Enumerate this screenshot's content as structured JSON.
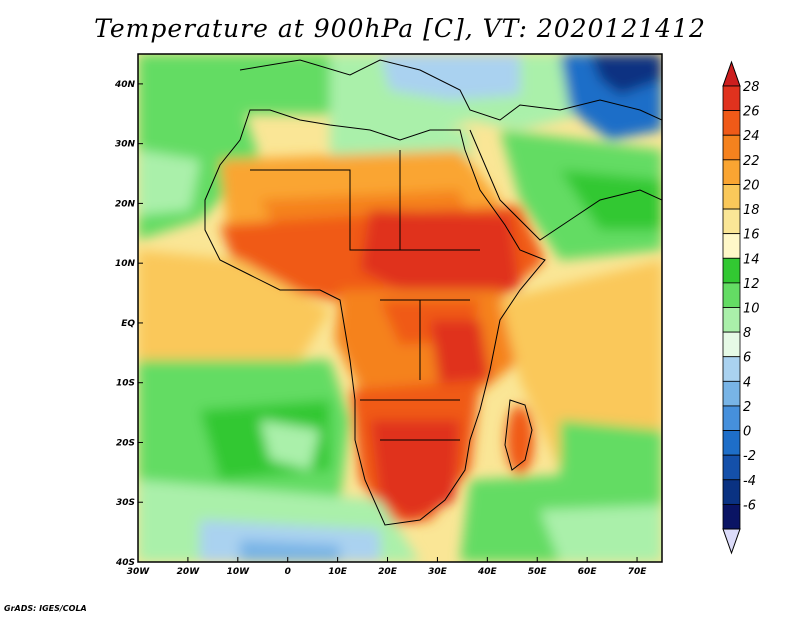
{
  "title": "Temperature at 900hPa [C], VT: 2020121412",
  "credit": "GrADS: IGES/COLA",
  "map": {
    "lon_range": [
      -30,
      75
    ],
    "lat_range": [
      -40,
      45
    ],
    "lon_ticks": [
      {
        "lon": -30,
        "label": "30W"
      },
      {
        "lon": -20,
        "label": "20W"
      },
      {
        "lon": -10,
        "label": "10W"
      },
      {
        "lon": 0,
        "label": "0"
      },
      {
        "lon": 10,
        "label": "10E"
      },
      {
        "lon": 20,
        "label": "20E"
      },
      {
        "lon": 30,
        "label": "30E"
      },
      {
        "lon": 40,
        "label": "40E"
      },
      {
        "lon": 50,
        "label": "50E"
      },
      {
        "lon": 60,
        "label": "60E"
      },
      {
        "lon": 70,
        "label": "70E"
      }
    ],
    "lat_ticks": [
      {
        "lat": 40,
        "label": "40N"
      },
      {
        "lat": 30,
        "label": "30N"
      },
      {
        "lat": 20,
        "label": "20N"
      },
      {
        "lat": 10,
        "label": "10N"
      },
      {
        "lat": 0,
        "label": "EQ"
      },
      {
        "lat": -10,
        "label": "10S"
      },
      {
        "lat": -20,
        "label": "20S"
      },
      {
        "lat": -30,
        "label": "30S"
      },
      {
        "lat": -40,
        "label": "40S"
      }
    ]
  },
  "colorbar": {
    "labels": [
      "28",
      "26",
      "24",
      "22",
      "20",
      "18",
      "16",
      "14",
      "12",
      "10",
      "8",
      "6",
      "4",
      "2",
      "0",
      "-2",
      "-4",
      "-6"
    ],
    "colors": [
      "#e0321e",
      "#f05a18",
      "#f5821e",
      "#faa532",
      "#fac85a",
      "#fae696",
      "#fff8c8",
      "#32c832",
      "#64dc64",
      "#aaf0aa",
      "#e6fae6",
      "#aad2f0",
      "#78b4e6",
      "#4690dc",
      "#1e6ec8",
      "#1450aa",
      "#0a3282",
      "#0a1464"
    ],
    "top_color": "#cc1e1e",
    "bottom_color": "#dcdcfa"
  }
}
